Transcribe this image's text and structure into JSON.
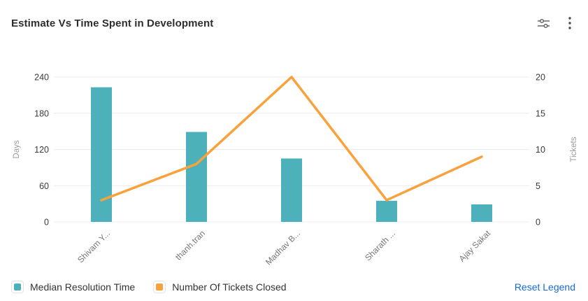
{
  "header": {
    "title": "Estimate Vs Time Spent in Development",
    "icons": [
      {
        "name": "sliders-icon"
      },
      {
        "name": "kebab-menu-icon"
      }
    ]
  },
  "chart_data": {
    "type": "combo-bar-line",
    "categories": [
      "Shivam Y...",
      "thanh.tran",
      "Madhav B...",
      "Sharath ...",
      "Ajay Sakat"
    ],
    "series": [
      {
        "name": "Median Resolution Time",
        "type": "bar",
        "axis": "left",
        "color": "#4DB1BC",
        "values": [
          223,
          149,
          105,
          35,
          29
        ]
      },
      {
        "name": "Number Of Tickets Closed",
        "type": "line",
        "axis": "right",
        "color": "#F9A23C",
        "values": [
          3,
          8,
          20,
          3,
          9
        ]
      }
    ],
    "left_axis": {
      "label": "Days",
      "range": [
        0,
        240
      ],
      "ticks": [
        0,
        60,
        120,
        180,
        240
      ]
    },
    "right_axis": {
      "label": "Tickets",
      "range": [
        0,
        20
      ],
      "ticks": [
        0,
        5,
        10,
        15,
        20
      ]
    },
    "grid": true,
    "grid_color": "#ececec",
    "tick_label_color": "#3a3a3a",
    "axis_name_color": "#9b9b9b",
    "category_label_color": "#757575",
    "legend_position": "bottom"
  },
  "legend": {
    "items": [
      {
        "label": "Median Resolution Time",
        "color": "#4DB1BC"
      },
      {
        "label": "Number Of Tickets Closed",
        "color": "#F9A23C"
      }
    ],
    "reset_label": "Reset Legend",
    "reset_color": "#1868DB"
  }
}
